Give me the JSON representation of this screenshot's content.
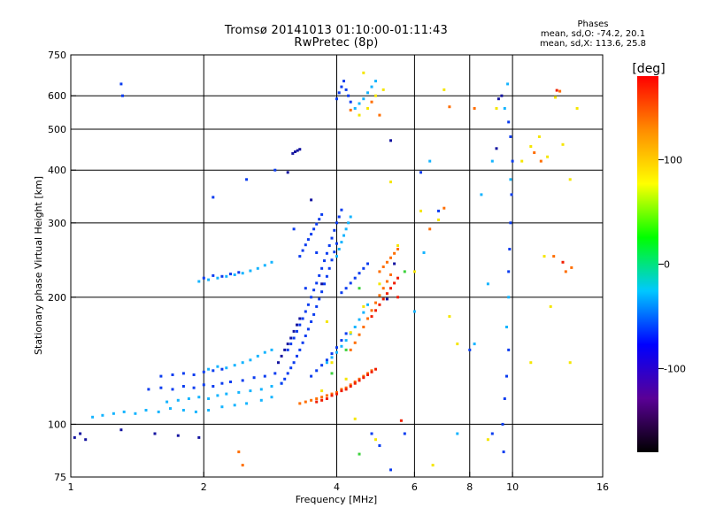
{
  "header": {
    "title_line1": "Tromsø 20141013 01:10:00-01:11:43",
    "title_line2": "RwPretec (8p)",
    "stats_title": "Phases",
    "stats_o": "mean, sd,O: -74.2, 20.1",
    "stats_x": "mean, sd,X: 113.6, 25.8"
  },
  "chart_data": {
    "type": "scatter",
    "title": "Tromsø 20141013 01:10:00-01:11:43",
    "subtitle": "RwPretec (8p)",
    "xlabel": "Frequency [MHz]",
    "ylabel": "Stationary phase Virtual Height [km]",
    "x_scale": "log",
    "y_scale": "log",
    "xlim": [
      1,
      16
    ],
    "ylim": [
      75,
      750
    ],
    "x_ticks": [
      1,
      2,
      4,
      6,
      8,
      10,
      16
    ],
    "x_tick_labels": [
      "1",
      "2",
      "4",
      "6",
      "8",
      "10",
      "16"
    ],
    "y_ticks": [
      75,
      100,
      200,
      300,
      400,
      500,
      600,
      750
    ],
    "y_tick_labels": [
      "75",
      "100",
      "200",
      "300",
      "400",
      "500",
      "600",
      "750"
    ],
    "x_gridlines": [
      2,
      4,
      6,
      8,
      10
    ],
    "y_gridlines": [
      100,
      200,
      300,
      400,
      500,
      600
    ],
    "grid": true,
    "colorbar": {
      "label": "[deg]",
      "range": [
        -180,
        180
      ],
      "ticks": [
        100,
        0,
        -100
      ],
      "tick_labels": [
        "100",
        "0",
        "-100"
      ],
      "colors": [
        "#000000",
        "#5a0096",
        "#0000ff",
        "#00c8ff",
        "#00ff00",
        "#ffff00",
        "#ff8c00",
        "#ff0000"
      ]
    },
    "point_colors": {
      "blue": "#0a3cf0",
      "cyan": "#14b4ff",
      "navy": "#1414a0",
      "orange": "#ff6e00",
      "red": "#f01e00",
      "yellow": "#f5e600",
      "green": "#3cd23c"
    },
    "series": [
      {
        "color": "cyan",
        "x": [
          1.12,
          1.18,
          1.25,
          1.32,
          1.4,
          1.48,
          1.58,
          1.68,
          1.8,
          1.92,
          2.05,
          2.2,
          2.35,
          2.5,
          2.7,
          2.85
        ],
        "y": [
          104,
          105,
          106,
          107,
          106,
          108,
          107,
          109,
          108,
          107,
          108,
          110,
          111,
          112,
          114,
          116
        ]
      },
      {
        "color": "cyan",
        "x": [
          1.65,
          1.75,
          1.85,
          1.95,
          2.05,
          2.15,
          2.25,
          2.4,
          2.55,
          2.7,
          2.85,
          3.0
        ],
        "y": [
          113,
          114,
          115,
          116,
          115,
          117,
          118,
          119,
          120,
          121,
          123,
          125
        ]
      },
      {
        "color": "blue",
        "x": [
          1.5,
          1.6,
          1.7,
          1.8,
          1.9,
          2.0,
          2.1,
          2.2,
          2.3,
          2.45,
          2.6,
          2.75,
          2.9
        ],
        "y": [
          121,
          122,
          121,
          123,
          122,
          124,
          123,
          125,
          126,
          127,
          129,
          130,
          132
        ]
      },
      {
        "color": "blue",
        "x": [
          1.6,
          1.7,
          1.8,
          1.9,
          2.0,
          2.1,
          2.2
        ],
        "y": [
          130,
          131,
          132,
          131,
          133,
          134,
          135
        ]
      },
      {
        "color": "cyan",
        "x": [
          2.05,
          2.15,
          2.25,
          2.35,
          2.45,
          2.55,
          2.65,
          2.75,
          2.85
        ],
        "y": [
          135,
          137,
          136,
          138,
          140,
          142,
          145,
          148,
          150
        ]
      },
      {
        "color": "cyan",
        "x": [
          1.95,
          2.05,
          2.15,
          2.25,
          2.35,
          2.45,
          2.55,
          2.65,
          2.75,
          2.85
        ],
        "y": [
          218,
          220,
          222,
          224,
          226,
          228,
          231,
          234,
          238,
          242
        ]
      },
      {
        "color": "blue",
        "x": [
          2.0,
          2.1,
          2.2,
          2.3,
          2.4
        ],
        "y": [
          222,
          225,
          224,
          227,
          229
        ]
      },
      {
        "color": "navy",
        "x": [
          1.02,
          1.05,
          1.08,
          1.3,
          1.55,
          1.75,
          1.95
        ],
        "y": [
          93,
          95,
          92,
          97,
          95,
          94,
          93
        ]
      },
      {
        "color": "blue",
        "x": [
          3.0,
          3.05,
          3.1,
          3.15,
          3.2,
          3.25,
          3.3,
          3.35,
          3.4,
          3.45,
          3.5,
          3.55,
          3.6,
          3.65,
          3.7,
          3.75,
          3.8,
          3.85,
          3.9,
          3.95,
          4.0
        ],
        "y": [
          125,
          128,
          132,
          136,
          140,
          145,
          150,
          156,
          162,
          168,
          175,
          182,
          190,
          198,
          206,
          215,
          224,
          234,
          245,
          256,
          268
        ]
      },
      {
        "color": "blue",
        "x": [
          3.1,
          3.15,
          3.2,
          3.25,
          3.3,
          3.35,
          3.4,
          3.45,
          3.5,
          3.55,
          3.6,
          3.65,
          3.7,
          3.75,
          3.8,
          3.85,
          3.9,
          3.95,
          4.0,
          4.05,
          4.1
        ],
        "y": [
          150,
          155,
          160,
          166,
          172,
          178,
          185,
          192,
          200,
          208,
          216,
          225,
          234,
          244,
          254,
          265,
          276,
          288,
          300,
          310,
          322
        ]
      },
      {
        "color": "navy",
        "x": [
          2.95,
          3.0,
          3.05,
          3.1,
          3.15,
          3.2,
          3.25,
          3.3
        ],
        "y": [
          140,
          145,
          150,
          155,
          160,
          166,
          172,
          178
        ]
      },
      {
        "color": "navy",
        "x": [
          3.18,
          3.22,
          3.26,
          3.3
        ],
        "y": [
          438,
          442,
          445,
          448
        ]
      },
      {
        "color": "blue",
        "x": [
          3.3,
          3.35,
          3.4,
          3.45,
          3.5,
          3.55,
          3.6,
          3.65,
          3.7
        ],
        "y": [
          250,
          258,
          266,
          274,
          282,
          290,
          298,
          306,
          314
        ]
      },
      {
        "color": "blue",
        "x": [
          3.5,
          3.6,
          3.7,
          3.8,
          3.9,
          4.0,
          4.1,
          4.2
        ],
        "y": [
          130,
          134,
          138,
          142,
          147,
          152,
          158,
          164
        ]
      },
      {
        "color": "cyan",
        "x": [
          3.8,
          3.9,
          4.0,
          4.1,
          4.2,
          4.3,
          4.4,
          4.5,
          4.6,
          4.7
        ],
        "y": [
          140,
          144,
          148,
          153,
          158,
          164,
          170,
          177,
          184,
          192
        ]
      },
      {
        "color": "cyan",
        "x": [
          4.0,
          4.05,
          4.1,
          4.15,
          4.2,
          4.25,
          4.3
        ],
        "y": [
          250,
          260,
          270,
          280,
          290,
          300,
          310
        ]
      },
      {
        "color": "blue",
        "x": [
          4.1,
          4.2,
          4.3,
          4.4,
          4.5,
          4.6,
          4.7
        ],
        "y": [
          205,
          210,
          216,
          222,
          228,
          234,
          240
        ]
      },
      {
        "color": "orange",
        "x": [
          3.3,
          3.4,
          3.5,
          3.6,
          3.7,
          3.8,
          3.9,
          4.0,
          4.1,
          4.2,
          4.3,
          4.4,
          4.5,
          4.6,
          4.7,
          4.8
        ],
        "y": [
          112,
          113,
          114,
          115,
          116,
          117,
          118,
          119,
          121,
          122,
          124,
          126,
          128,
          130,
          132,
          134
        ]
      },
      {
        "color": "red",
        "x": [
          3.6,
          3.7,
          3.8,
          3.9,
          4.0,
          4.1,
          4.2,
          4.3,
          4.4,
          4.5,
          4.6,
          4.7,
          4.8,
          4.9
        ],
        "y": [
          113,
          114,
          115,
          117,
          118,
          120,
          121,
          123,
          125,
          127,
          129,
          131,
          133,
          135
        ]
      },
      {
        "color": "orange",
        "x": [
          4.3,
          4.4,
          4.5,
          4.6,
          4.7,
          4.8,
          4.9,
          5.0,
          5.1,
          5.2,
          5.3
        ],
        "y": [
          150,
          156,
          163,
          170,
          178,
          186,
          194,
          202,
          210,
          218,
          226
        ]
      },
      {
        "color": "red",
        "x": [
          4.8,
          4.9,
          5.0,
          5.1,
          5.2,
          5.3,
          5.4,
          5.5
        ],
        "y": [
          180,
          186,
          192,
          198,
          204,
          210,
          216,
          222
        ]
      },
      {
        "color": "orange",
        "x": [
          5.0,
          5.1,
          5.2,
          5.3,
          5.4,
          5.5
        ],
        "y": [
          230,
          236,
          242,
          248,
          254,
          260
        ]
      },
      {
        "color": "yellow",
        "x": [
          3.7,
          3.9,
          4.3,
          4.6,
          5.0,
          4.2,
          3.8
        ],
        "y": [
          120,
          140,
          165,
          190,
          215,
          128,
          175
        ]
      },
      {
        "color": "green",
        "x": [
          3.9,
          4.2,
          4.5
        ],
        "y": [
          132,
          150,
          210
        ]
      },
      {
        "color": "blue",
        "x": [
          4.0,
          4.05,
          4.1,
          4.15,
          4.2,
          4.25,
          4.3
        ],
        "y": [
          590,
          610,
          630,
          650,
          620,
          600,
          580
        ]
      },
      {
        "color": "cyan",
        "x": [
          4.4,
          4.5,
          4.6,
          4.7,
          4.8,
          4.9
        ],
        "y": [
          560,
          575,
          590,
          610,
          630,
          650
        ]
      },
      {
        "color": "yellow",
        "x": [
          4.5,
          4.7,
          4.9,
          5.1,
          4.6
        ],
        "y": [
          540,
          560,
          600,
          620,
          680
        ]
      },
      {
        "color": "orange",
        "x": [
          4.3,
          4.8,
          5.0
        ],
        "y": [
          555,
          580,
          540
        ]
      },
      {
        "color": "blue",
        "x": [
          9.8,
          9.85,
          9.9,
          9.95,
          10.0,
          9.9,
          9.8
        ],
        "y": [
          230,
          260,
          300,
          350,
          420,
          480,
          520
        ]
      },
      {
        "color": "cyan",
        "x": [
          9.7,
          9.8,
          9.9,
          9.6,
          9.75
        ],
        "y": [
          170,
          200,
          380,
          560,
          640
        ]
      },
      {
        "color": "blue",
        "x": [
          9.5,
          9.6,
          9.7,
          9.8,
          9.55
        ],
        "y": [
          100,
          115,
          130,
          150,
          86
        ]
      },
      {
        "color": "navy",
        "x": [
          9.3,
          9.2,
          9.45
        ],
        "y": [
          590,
          450,
          600
        ]
      },
      {
        "color": "cyan",
        "x": [
          8.2,
          8.5,
          8.8,
          9.0
        ],
        "y": [
          155,
          350,
          215,
          420
        ]
      },
      {
        "color": "yellow",
        "x": [
          11.0,
          11.5,
          12.0,
          12.5,
          13.0,
          13.5,
          14.0,
          11.8,
          12.2
        ],
        "y": [
          455,
          480,
          430,
          595,
          460,
          380,
          560,
          250,
          190
        ]
      },
      {
        "color": "orange",
        "x": [
          11.2,
          11.6,
          12.4,
          13.2,
          13.6,
          12.8
        ],
        "y": [
          440,
          420,
          250,
          230,
          235,
          615
        ]
      },
      {
        "color": "red",
        "x": [
          12.6,
          13.0
        ],
        "y": [
          618,
          242
        ]
      },
      {
        "color": "yellow",
        "x": [
          6.2,
          6.8,
          7.2,
          7.5,
          6.6,
          8.8,
          9.2,
          7.0,
          10.5,
          11.0,
          13.5
        ],
        "y": [
          320,
          305,
          180,
          155,
          80,
          92,
          560,
          620,
          420,
          140,
          140
        ]
      },
      {
        "color": "orange",
        "x": [
          6.5,
          7.0,
          7.2,
          8.2
        ],
        "y": [
          290,
          325,
          565,
          560
        ]
      },
      {
        "color": "blue",
        "x": [
          6.2,
          6.8,
          8.0,
          9.0
        ],
        "y": [
          395,
          320,
          150,
          95
        ]
      },
      {
        "color": "cyan",
        "x": [
          6.0,
          6.3,
          6.5,
          7.5
        ],
        "y": [
          185,
          255,
          420,
          95
        ]
      },
      {
        "color": "red",
        "x": [
          5.6,
          5.5
        ],
        "y": [
          102,
          200
        ]
      },
      {
        "color": "blue",
        "x": [
          4.8,
          5.0,
          5.3,
          5.7
        ],
        "y": [
          95,
          89,
          78,
          95
        ]
      },
      {
        "color": "navy",
        "x": [
          5.4,
          5.2,
          5.3
        ],
        "y": [
          240,
          198,
          470
        ]
      },
      {
        "color": "yellow",
        "x": [
          5.5,
          6.0,
          4.4,
          4.9,
          5.3
        ],
        "y": [
          265,
          230,
          103,
          92,
          375
        ]
      },
      {
        "color": "green",
        "x": [
          4.5,
          5.7
        ],
        "y": [
          85,
          230
        ]
      },
      {
        "color": "blue",
        "x": [
          1.3,
          1.31
        ],
        "y": [
          640,
          600
        ]
      },
      {
        "color": "orange",
        "x": [
          2.4,
          2.45
        ],
        "y": [
          86,
          80
        ]
      },
      {
        "color": "blue",
        "x": [
          2.1,
          2.5,
          2.9,
          3.2,
          3.4,
          3.6
        ],
        "y": [
          345,
          380,
          400,
          290,
          210,
          255
        ]
      },
      {
        "color": "navy",
        "x": [
          3.1,
          3.5,
          3.7
        ],
        "y": [
          395,
          340,
          215
        ]
      }
    ]
  }
}
